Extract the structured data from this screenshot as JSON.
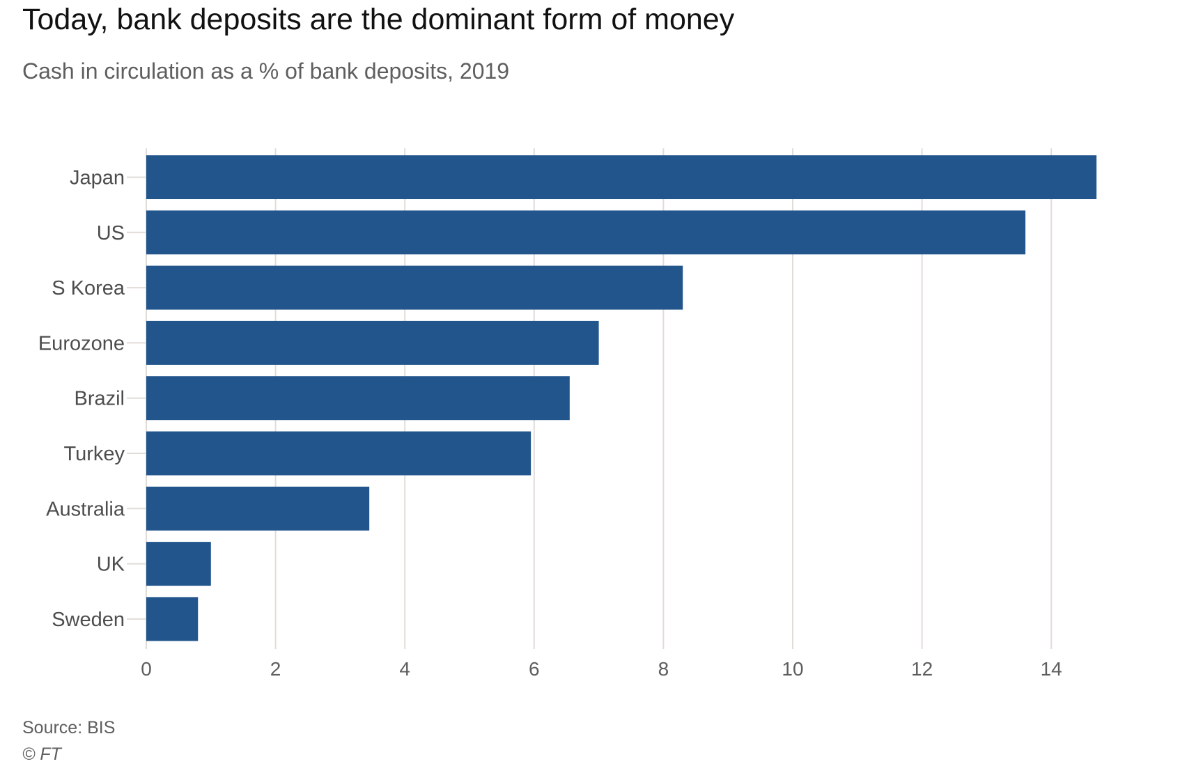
{
  "title": "Today, bank deposits are the dominant form of money",
  "subtitle": "Cash in circulation as a % of bank deposits, 2019",
  "footer": {
    "source": "Source: BIS",
    "copyright": "© FT"
  },
  "colors": {
    "bar": "#22558c",
    "grid": "#e2dcd8",
    "tick_label": "#5e5e5e",
    "category_label": "#4d4d4d"
  },
  "chart_data": {
    "type": "bar",
    "orientation": "horizontal",
    "categories": [
      "Japan",
      "US",
      "S Korea",
      "Eurozone",
      "Brazil",
      "Turkey",
      "Australia",
      "UK",
      "Sweden"
    ],
    "values": [
      14.7,
      13.6,
      8.3,
      7.0,
      6.55,
      5.95,
      3.45,
      1.0,
      0.8
    ],
    "x_ticks": [
      "0",
      "2",
      "4",
      "6",
      "8",
      "10",
      "12",
      "14"
    ],
    "xlim": [
      0,
      15
    ],
    "xlabel": "",
    "ylabel": "",
    "grid": true
  }
}
